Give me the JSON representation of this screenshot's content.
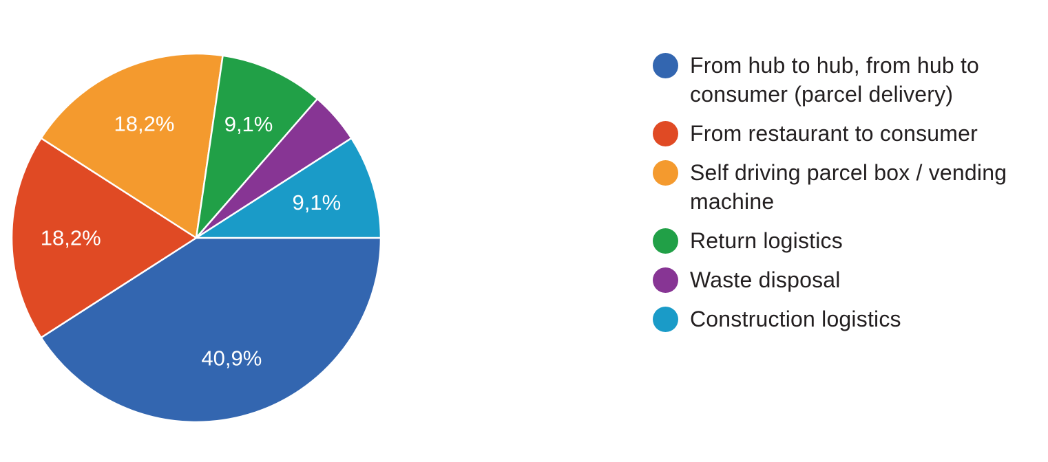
{
  "chart_data": {
    "type": "pie",
    "title": "",
    "legend_position": "right",
    "slices": [
      {
        "label": "From hub to hub, from hub to consumer (parcel delivery)",
        "value": 40.9,
        "display": "40,9%",
        "color": "#3366b0"
      },
      {
        "label": "From restaurant to consumer",
        "value": 18.2,
        "display": "18,2%",
        "color": "#e04a24"
      },
      {
        "label": "Self driving parcel box / vending machine",
        "value": 18.2,
        "display": "18,2%",
        "color": "#f49a2e"
      },
      {
        "label": "Return logistics",
        "value": 9.1,
        "display": "9,1%",
        "color": "#21a047"
      },
      {
        "label": "Waste disposal",
        "value": 4.5,
        "display": "",
        "color": "#873594"
      },
      {
        "label": "Construction logistics",
        "value": 9.1,
        "display": "9,1%",
        "color": "#1a9bc8"
      }
    ]
  }
}
